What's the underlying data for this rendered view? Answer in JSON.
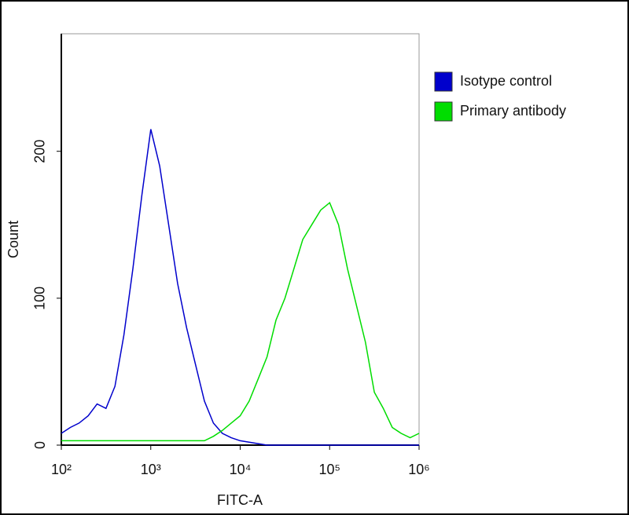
{
  "chart_data": {
    "type": "line",
    "x_label": "FITC-A",
    "y_label": "Count",
    "log_x": true,
    "x": [
      100,
      126,
      158,
      200,
      251,
      316,
      398,
      501,
      631,
      794,
      1000,
      1259,
      1585,
      1995,
      2512,
      3162,
      3981,
      5012,
      6310,
      7943,
      10000,
      12589,
      15849,
      19953,
      25119,
      31623,
      39811,
      50119,
      63096,
      79433,
      100000,
      125893,
      158489,
      199526,
      251189,
      316228,
      398107,
      501187,
      630957,
      794328,
      1000000
    ],
    "series": [
      {
        "name": "Isotype control",
        "color": "#0000cc",
        "values": [
          8,
          12,
          15,
          20,
          28,
          25,
          40,
          75,
          120,
          170,
          215,
          190,
          150,
          110,
          80,
          55,
          30,
          15,
          8,
          5,
          3,
          2,
          1,
          0,
          0,
          0,
          0,
          0,
          0,
          0,
          0,
          0,
          0,
          0,
          0,
          0,
          0,
          0,
          0,
          0,
          0
        ]
      },
      {
        "name": "Primary antibody",
        "color": "#00dd00",
        "values": [
          3,
          3,
          3,
          3,
          3,
          3,
          3,
          3,
          3,
          3,
          3,
          3,
          3,
          3,
          3,
          3,
          3,
          6,
          10,
          15,
          20,
          30,
          45,
          60,
          85,
          100,
          120,
          140,
          150,
          160,
          165,
          150,
          120,
          95,
          70,
          36,
          25,
          12,
          8,
          5,
          8
        ]
      }
    ],
    "xlim": [
      100,
      1000000
    ],
    "xticks": [
      {
        "value": 100,
        "label": "10²"
      },
      {
        "value": 1000,
        "label": "10³"
      },
      {
        "value": 10000,
        "label": "10⁴"
      },
      {
        "value": 100000,
        "label": "10⁵"
      },
      {
        "value": 1000000,
        "label": "10⁶"
      }
    ],
    "ylim": [
      0,
      280
    ],
    "yticks": [
      0,
      100,
      200
    ],
    "grid": false
  }
}
